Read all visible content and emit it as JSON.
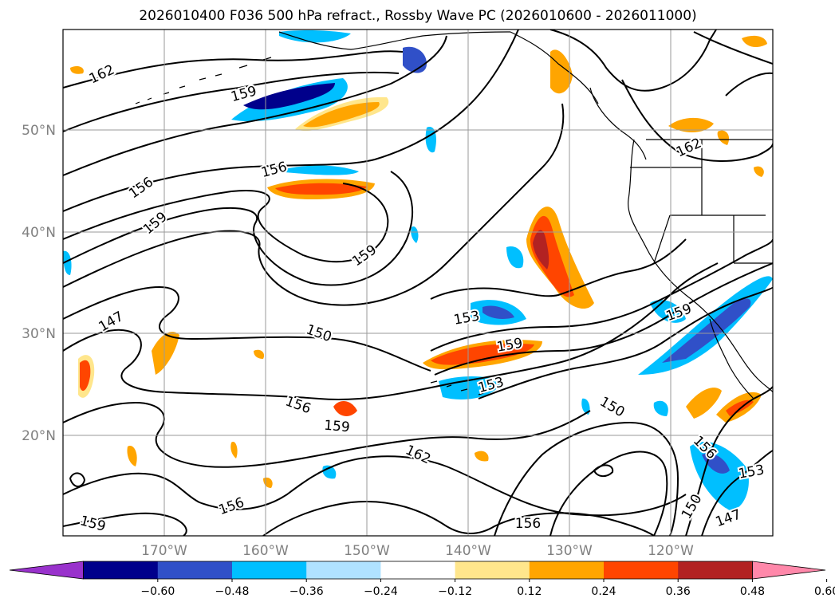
{
  "title": "2026010400 F036 500 hPa refract., Rossby Wave PC (2026010600 - 2026011000)",
  "lat_labels": [
    "50°N",
    "40°N",
    "30°N",
    "20°N"
  ],
  "lon_labels": [
    "170°W",
    "160°W",
    "150°W",
    "140°W",
    "130°W",
    "120°W"
  ],
  "contour_labels": [
    "162",
    "159",
    "156",
    "159",
    "156",
    "159",
    "147",
    "150",
    "153",
    "159",
    "153",
    "156",
    "159",
    "162",
    "156",
    "159",
    "150",
    "156",
    "153",
    "150",
    "147",
    "156",
    "162",
    "159"
  ],
  "colorbar": {
    "ticks": [
      "−0.60",
      "−0.48",
      "−0.36",
      "−0.24",
      "−0.12",
      "0.12",
      "0.24",
      "0.36",
      "0.48",
      "0.60"
    ],
    "colors": [
      "#9932cc",
      "#00008b",
      "#3050c8",
      "#00bfff",
      "#b0e2ff",
      "#ffffff",
      "#ffe68c",
      "#ffa500",
      "#ff4500",
      "#b22222",
      "#ff88aa"
    ]
  },
  "fill_colors": {
    "neg_light": "#b0e2ff",
    "neg_mid": "#00bfff",
    "neg_strong": "#3050c8",
    "neg_max": "#00008b",
    "pos_light": "#ffe68c",
    "pos_mid": "#ffa500",
    "pos_strong": "#ff4500",
    "pos_max": "#b22222"
  }
}
